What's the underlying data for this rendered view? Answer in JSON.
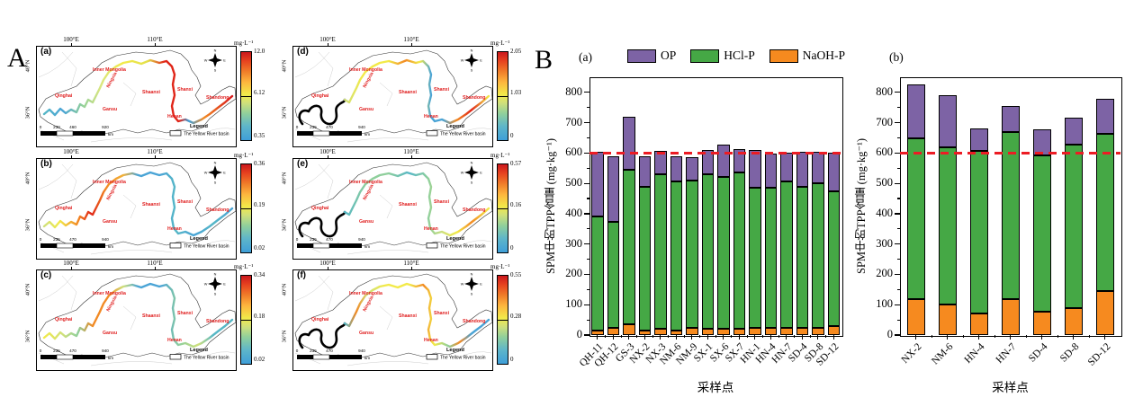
{
  "figure": {
    "panel_a_label": "A",
    "panel_b_label": "B"
  },
  "maps": {
    "common": {
      "colorbar_unit": "mg·L⁻¹",
      "top_ticks": [
        "100°E",
        "110°E"
      ],
      "left_ticks": [
        "40°N",
        "36°N"
      ],
      "regions": [
        "Qinghai",
        "Gansu",
        "Inner Mongolia",
        "Ningxia",
        "Shaanxi",
        "Shanxi",
        "Henan",
        "Shandong"
      ],
      "legend_title": "Legend",
      "legend_item": "The Yellow River basin",
      "compass": [
        "N",
        "E",
        "S",
        "W"
      ],
      "scale_unit": "km"
    },
    "panels": [
      {
        "label": "(a)",
        "colorbar": {
          "max": "12.0",
          "mid": "6.12",
          "min": "0.35"
        },
        "scale_ticks": [
          "0",
          "230",
          "460",
          "920"
        ],
        "black_upstream": false,
        "river_stops": [
          [
            0,
            "#56b7c6"
          ],
          [
            0.1,
            "#4aa4d6"
          ],
          [
            0.2,
            "#8fcf9c"
          ],
          [
            0.3,
            "#d9e680"
          ],
          [
            0.42,
            "#f2ea49"
          ],
          [
            0.55,
            "#e3e04a"
          ],
          [
            0.64,
            "#e02518"
          ],
          [
            0.72,
            "#e02518"
          ],
          [
            0.77,
            "#3f9fd8"
          ],
          [
            0.85,
            "#f28a24"
          ],
          [
            1,
            "#d7191c"
          ]
        ]
      },
      {
        "label": "(b)",
        "colorbar": {
          "max": "0.36",
          "mid": "0.19",
          "min": "0.02"
        },
        "scale_ticks": [
          "0",
          "235",
          "470",
          "940"
        ],
        "black_upstream": false,
        "river_stops": [
          [
            0,
            "#cfe07c"
          ],
          [
            0.08,
            "#f2ea49"
          ],
          [
            0.18,
            "#f28a24"
          ],
          [
            0.25,
            "#e02518"
          ],
          [
            0.33,
            "#f28a24"
          ],
          [
            0.42,
            "#f2b23a"
          ],
          [
            0.5,
            "#4aa4d6"
          ],
          [
            0.62,
            "#4aa4d6"
          ],
          [
            0.7,
            "#56b7c6"
          ],
          [
            0.8,
            "#4aa4d6"
          ],
          [
            0.9,
            "#56b7c6"
          ],
          [
            1,
            "#4aa4d6"
          ]
        ]
      },
      {
        "label": "(c)",
        "colorbar": {
          "max": "0.34",
          "mid": "0.18",
          "min": "0.02"
        },
        "scale_ticks": [
          "0",
          "235",
          "470",
          "940"
        ],
        "black_upstream": false,
        "river_stops": [
          [
            0,
            "#f2ea49"
          ],
          [
            0.1,
            "#cfe07c"
          ],
          [
            0.18,
            "#8fcf9c"
          ],
          [
            0.26,
            "#f28a24"
          ],
          [
            0.34,
            "#f28a24"
          ],
          [
            0.42,
            "#cfe07c"
          ],
          [
            0.5,
            "#4aa4d6"
          ],
          [
            0.62,
            "#4aa4d6"
          ],
          [
            0.72,
            "#8fcf9c"
          ],
          [
            0.82,
            "#cfe07c"
          ],
          [
            0.9,
            "#56b7c6"
          ],
          [
            1,
            "#56b7c6"
          ]
        ]
      },
      {
        "label": "(d)",
        "colorbar": {
          "max": "2.05",
          "mid": "1.03",
          "min": "0"
        },
        "scale_ticks": [
          "0",
          "235",
          "470",
          "940"
        ],
        "black_upstream": true,
        "river_stops": [
          [
            0,
            "#cfe07c"
          ],
          [
            0.12,
            "#f2ea49"
          ],
          [
            0.3,
            "#f2ea49"
          ],
          [
            0.42,
            "#f28a24"
          ],
          [
            0.52,
            "#f2ea49"
          ],
          [
            0.6,
            "#4aa4d6"
          ],
          [
            0.68,
            "#4aa4d6"
          ],
          [
            0.78,
            "#f28a24"
          ],
          [
            0.88,
            "#e02518"
          ],
          [
            1,
            "#f2ea49"
          ]
        ]
      },
      {
        "label": "(e)",
        "colorbar": {
          "max": "0.57",
          "mid": "0.16",
          "min": "0"
        },
        "scale_ticks": [
          "0",
          "235",
          "470",
          "940"
        ],
        "black_upstream": true,
        "river_stops": [
          [
            0,
            "#56b7c6"
          ],
          [
            0.15,
            "#8fcf9c"
          ],
          [
            0.3,
            "#8fcf9c"
          ],
          [
            0.45,
            "#56b7c6"
          ],
          [
            0.58,
            "#8fcf9c"
          ],
          [
            0.68,
            "#cfe07c"
          ],
          [
            0.78,
            "#f2ea49"
          ],
          [
            0.88,
            "#f28a24"
          ],
          [
            1,
            "#f2ea49"
          ]
        ]
      },
      {
        "label": "(f)",
        "colorbar": {
          "max": "0.55",
          "mid": "0.28",
          "min": "0"
        },
        "scale_ticks": [
          "0",
          "235",
          "470",
          "940"
        ],
        "black_upstream": true,
        "river_stops": [
          [
            0,
            "#56b7c6"
          ],
          [
            0.08,
            "#f28a24"
          ],
          [
            0.16,
            "#cfe07c"
          ],
          [
            0.28,
            "#f2ea49"
          ],
          [
            0.45,
            "#f2ea49"
          ],
          [
            0.55,
            "#f28a24"
          ],
          [
            0.62,
            "#f2ea49"
          ],
          [
            0.72,
            "#8fcf9c"
          ],
          [
            0.8,
            "#f28a24"
          ],
          [
            0.88,
            "#4aa4d6"
          ],
          [
            1,
            "#4aa4d6"
          ]
        ]
      }
    ]
  },
  "chart_data": [
    {
      "id": "a",
      "type": "bar",
      "subtype": "stacked",
      "panel_label": "(a)",
      "legend": [
        "OP",
        "HCl-P",
        "NaOH-P"
      ],
      "legend_position": "top",
      "categories": [
        "QH-11",
        "QH-12",
        "GS-3",
        "NX-2",
        "NX-3",
        "NM-6",
        "NM-9",
        "SX-1",
        "SX-6",
        "SX-7",
        "HN-1",
        "HN-4",
        "HN-7",
        "SD-4",
        "SD-8",
        "SD-12"
      ],
      "series": [
        {
          "name": "NaOH-P",
          "color": "#F68A1F",
          "values": [
            15,
            25,
            35,
            15,
            20,
            15,
            25,
            22,
            22,
            20,
            25,
            25,
            25,
            25,
            25,
            30
          ]
        },
        {
          "name": "HCl-P",
          "color": "#45A845",
          "values": [
            375,
            347,
            510,
            475,
            510,
            490,
            485,
            508,
            498,
            515,
            462,
            462,
            480,
            465,
            475,
            443
          ]
        },
        {
          "name": "OP",
          "color": "#7D63A5",
          "values": [
            215,
            218,
            175,
            98,
            77,
            83,
            75,
            80,
            107,
            77,
            123,
            111,
            95,
            115,
            105,
            127
          ]
        }
      ],
      "totals": [
        605,
        590,
        720,
        588,
        607,
        588,
        585,
        610,
        627,
        612,
        610,
        598,
        600,
        605,
        605,
        600
      ],
      "ylabel": "SPM中的TPP含量 (mg·kg⁻¹)",
      "xlabel": "采样点",
      "ylim": [
        0,
        850
      ],
      "yticks": [
        0,
        100,
        200,
        300,
        400,
        500,
        600,
        700,
        800
      ],
      "reference_line": 600,
      "grid": false
    },
    {
      "id": "b",
      "type": "bar",
      "subtype": "stacked",
      "panel_label": "(b)",
      "legend": null,
      "categories": [
        "NX-2",
        "NM-6",
        "HN-4",
        "HN-7",
        "SD-4",
        "SD-8",
        "SD-12"
      ],
      "series": [
        {
          "name": "NaOH-P",
          "color": "#F68A1F",
          "values": [
            118,
            100,
            70,
            118,
            78,
            88,
            145
          ]
        },
        {
          "name": "HCl-P",
          "color": "#45A845",
          "values": [
            532,
            520,
            537,
            550,
            515,
            539,
            518
          ]
        },
        {
          "name": "OP",
          "color": "#7D63A5",
          "values": [
            175,
            170,
            73,
            87,
            85,
            91,
            117
          ]
        }
      ],
      "totals": [
        825,
        790,
        680,
        755,
        678,
        718,
        780
      ],
      "ylabel": "SPM中的TPP含量 (mg·kg⁻¹)",
      "xlabel": "采样点",
      "ylim": [
        0,
        850
      ],
      "yticks": [
        0,
        100,
        200,
        300,
        400,
        500,
        600,
        700,
        800
      ],
      "reference_line": 600,
      "grid": false
    }
  ],
  "colors": {
    "op": "#7D63A5",
    "hcl_p": "#45A845",
    "naoh_p": "#F68A1F",
    "reference_line": "#EC1C24",
    "region_label": "#E02020"
  }
}
